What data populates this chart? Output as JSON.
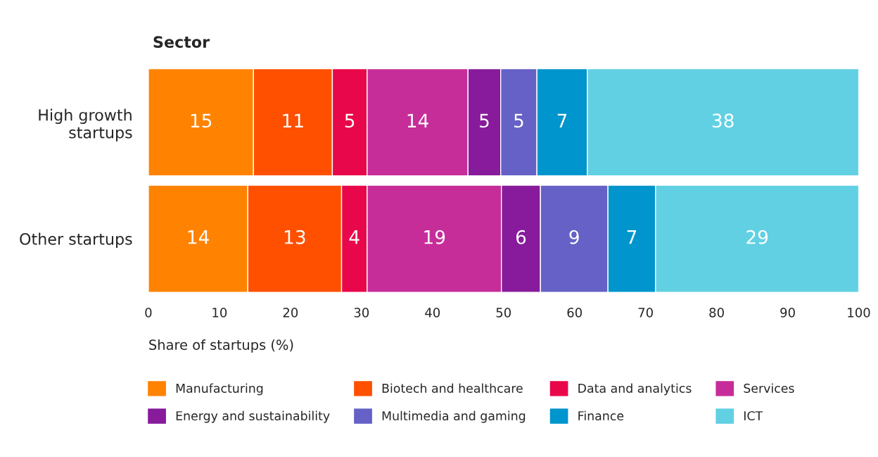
{
  "chart_data": {
    "type": "bar",
    "orientation": "horizontal",
    "stacked": true,
    "title": "Sector",
    "xlabel": "Share of startups (%)",
    "categories": [
      "High growth\nstartups",
      "Other startups"
    ],
    "xlim": [
      0,
      100
    ],
    "xticks": [
      0,
      10,
      20,
      30,
      40,
      50,
      60,
      70,
      80,
      90,
      100
    ],
    "grid": false,
    "legend": "bottom",
    "series": [
      {
        "name": "Manufacturing",
        "color": "#ff8300",
        "values": [
          14.8,
          14.0
        ],
        "value_labels": [
          "15",
          "14"
        ]
      },
      {
        "name": "Biotech and healthcare",
        "color": "#ff5000",
        "values": [
          11.1,
          13.2
        ],
        "value_labels": [
          "11",
          "13"
        ]
      },
      {
        "name": "Data and analytics",
        "color": "#e8074a",
        "values": [
          4.9,
          3.6
        ],
        "value_labels": [
          "5",
          "4"
        ]
      },
      {
        "name": "Services",
        "color": "#c62d99",
        "values": [
          14.2,
          18.9
        ],
        "value_labels": [
          "14",
          "19"
        ]
      },
      {
        "name": "Energy and sustainability",
        "color": "#871b9c",
        "values": [
          4.6,
          5.5
        ],
        "value_labels": [
          "5",
          "6"
        ]
      },
      {
        "name": "Multimedia and gaming",
        "color": "#6561c6",
        "values": [
          5.1,
          9.5
        ],
        "value_labels": [
          "5",
          "9"
        ]
      },
      {
        "name": "Finance",
        "color": "#0095cc",
        "values": [
          7.1,
          6.7
        ],
        "value_labels": [
          "7",
          "7"
        ]
      },
      {
        "name": "ICT",
        "color": "#61d0e3",
        "values": [
          38.2,
          28.6
        ],
        "value_labels": [
          "38",
          "29"
        ]
      }
    ]
  }
}
